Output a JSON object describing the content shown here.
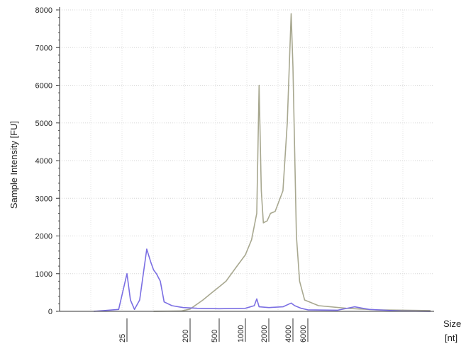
{
  "chart_data": {
    "type": "line",
    "title": "",
    "ylabel": "Sample Intensity [FU]",
    "xlabel": "Size [nt]",
    "xlabel_lines": [
      "Size",
      "[nt]"
    ],
    "ylim": [
      0,
      8000
    ],
    "yticks": [
      0,
      1000,
      2000,
      3000,
      4000,
      5000,
      6000,
      7000,
      8000
    ],
    "x_scale": "logarithmic ladder, index spacing",
    "x_ticks": [
      {
        "label": "25",
        "x": 25
      },
      {
        "label": "200",
        "x": 200
      },
      {
        "label": "500",
        "x": 500
      },
      {
        "label": "1000",
        "x": 1000
      },
      {
        "label": "2000",
        "x": 2000
      },
      {
        "label": "4000",
        "x": 4000
      },
      {
        "label": "6000",
        "x": 6000
      }
    ],
    "grid": true,
    "legend": "none",
    "series": [
      {
        "color": "#a8a890",
        "points": [
          [
            60,
            0
          ],
          [
            150,
            10
          ],
          [
            200,
            60
          ],
          [
            300,
            300
          ],
          [
            400,
            500
          ],
          [
            500,
            650
          ],
          [
            600,
            800
          ],
          [
            800,
            1200
          ],
          [
            1000,
            1500
          ],
          [
            1200,
            1900
          ],
          [
            1400,
            2600
          ],
          [
            1500,
            6000
          ],
          [
            1600,
            3200
          ],
          [
            1700,
            2350
          ],
          [
            1900,
            2400
          ],
          [
            2100,
            2600
          ],
          [
            2400,
            2650
          ],
          [
            3000,
            3200
          ],
          [
            3400,
            5000
          ],
          [
            3800,
            7900
          ],
          [
            4000,
            6500
          ],
          [
            4400,
            2000
          ],
          [
            4800,
            800
          ],
          [
            5500,
            300
          ],
          [
            6500,
            150
          ],
          [
            8000,
            80
          ],
          [
            10000,
            40
          ],
          [
            15000,
            20
          ]
        ]
      },
      {
        "color": "#7b6fe3",
        "points": [
          [
            15,
            0
          ],
          [
            22,
            50
          ],
          [
            25,
            1000
          ],
          [
            28,
            300
          ],
          [
            32,
            50
          ],
          [
            38,
            300
          ],
          [
            48,
            1650
          ],
          [
            55,
            1300
          ],
          [
            60,
            1100
          ],
          [
            66,
            1000
          ],
          [
            75,
            800
          ],
          [
            85,
            250
          ],
          [
            110,
            150
          ],
          [
            160,
            100
          ],
          [
            250,
            80
          ],
          [
            500,
            70
          ],
          [
            1000,
            80
          ],
          [
            1300,
            150
          ],
          [
            1400,
            330
          ],
          [
            1500,
            120
          ],
          [
            2000,
            100
          ],
          [
            3000,
            120
          ],
          [
            3800,
            220
          ],
          [
            4200,
            150
          ],
          [
            5000,
            80
          ],
          [
            6000,
            40
          ],
          [
            7500,
            30
          ],
          [
            8500,
            120
          ],
          [
            9500,
            50
          ],
          [
            12000,
            10
          ],
          [
            15000,
            0
          ]
        ]
      }
    ]
  }
}
